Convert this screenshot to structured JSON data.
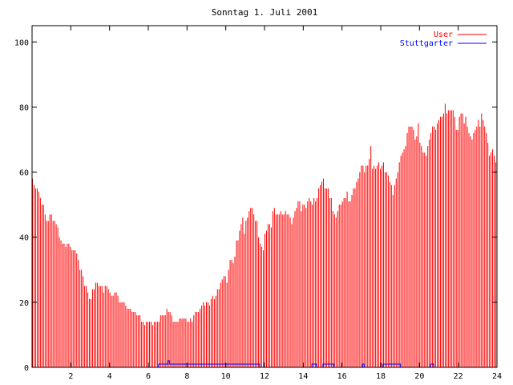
{
  "chart_data": {
    "type": "bar",
    "title": "Sonntag 1. Juli 2001",
    "xlim": [
      0,
      24
    ],
    "ylim": [
      0,
      105
    ],
    "xticks": [
      2,
      4,
      6,
      8,
      10,
      12,
      14,
      16,
      18,
      20,
      22,
      24
    ],
    "yticks": [
      0,
      20,
      40,
      60,
      80,
      100
    ],
    "legend_position": "top-right",
    "series": [
      {
        "name": "User",
        "color": "#ff0000",
        "values": [
          58,
          56,
          55,
          55,
          54,
          52,
          50,
          50,
          47,
          45,
          45,
          47,
          47,
          45,
          45,
          44,
          43,
          40,
          39,
          38,
          38,
          37,
          38,
          38,
          37,
          36,
          36,
          36,
          35,
          33,
          30,
          30,
          28,
          25,
          25,
          23,
          21,
          21,
          24,
          24,
          26,
          26,
          25,
          25,
          25,
          23,
          25,
          25,
          24,
          23,
          22,
          22,
          23,
          23,
          22,
          20,
          20,
          20,
          20,
          19,
          18,
          18,
          18,
          17,
          17,
          17,
          16,
          16,
          16,
          14,
          14,
          13,
          14,
          14,
          14,
          14,
          13,
          14,
          14,
          14,
          14,
          16,
          16,
          16,
          16,
          18,
          17,
          17,
          16,
          14,
          14,
          14,
          14,
          15,
          15,
          15,
          15,
          15,
          14,
          14,
          15,
          14,
          16,
          17,
          17,
          17,
          18,
          19,
          20,
          19,
          20,
          20,
          19,
          21,
          22,
          21,
          22,
          24,
          24,
          26,
          27,
          28,
          28,
          26,
          30,
          33,
          33,
          32,
          34,
          39,
          39,
          42,
          44,
          46,
          41,
          45,
          46,
          48,
          49,
          49,
          47,
          45,
          45,
          40,
          38,
          37,
          36,
          41,
          42,
          44,
          44,
          43,
          48,
          49,
          47,
          47,
          47,
          48,
          47,
          47,
          48,
          47,
          47,
          46,
          44,
          46,
          48,
          49,
          51,
          51,
          48,
          50,
          50,
          49,
          51,
          52,
          51,
          50,
          52,
          51,
          52,
          55,
          56,
          57,
          58,
          55,
          55,
          55,
          52,
          52,
          48,
          47,
          46,
          48,
          50,
          50,
          51,
          52,
          52,
          54,
          51,
          51,
          53,
          55,
          55,
          57,
          58,
          60,
          62,
          62,
          60,
          62,
          62,
          64,
          68,
          61,
          62,
          61,
          62,
          63,
          61,
          62,
          63,
          60,
          60,
          59,
          57,
          56,
          53,
          56,
          58,
          60,
          63,
          65,
          66,
          67,
          68,
          72,
          74,
          74,
          74,
          73,
          70,
          71,
          75,
          69,
          68,
          66,
          66,
          65,
          68,
          70,
          72,
          74,
          74,
          73,
          75,
          76,
          77,
          77,
          78,
          81,
          78,
          79,
          79,
          79,
          79,
          77,
          73,
          73,
          77,
          78,
          78,
          75,
          77,
          74,
          72,
          71,
          70,
          72,
          73,
          74,
          76,
          74,
          78,
          76,
          74,
          72,
          69,
          65,
          66,
          67,
          65,
          63
        ]
      },
      {
        "name": "Stuttgarter",
        "color": "#0000ff",
        "values": [
          0,
          0,
          0,
          0,
          0,
          0,
          0,
          0,
          0,
          0,
          0,
          0,
          0,
          0,
          0,
          0,
          0,
          0,
          0,
          0,
          0,
          0,
          0,
          0,
          0,
          0,
          0,
          0,
          0,
          0,
          0,
          0,
          0,
          0,
          0,
          0,
          0,
          0,
          0,
          0,
          0,
          0,
          0,
          0,
          0,
          0,
          0,
          0,
          0,
          0,
          0,
          0,
          0,
          0,
          0,
          0,
          0,
          0,
          0,
          0,
          0,
          0,
          0,
          0,
          0,
          0,
          0,
          0,
          0,
          0,
          0,
          0,
          0,
          0,
          0,
          0,
          0,
          0,
          0,
          0,
          1,
          1,
          1,
          1,
          1,
          1,
          2,
          1,
          1,
          1,
          1,
          1,
          1,
          1,
          1,
          1,
          1,
          1,
          1,
          1,
          1,
          1,
          1,
          1,
          1,
          1,
          1,
          1,
          1,
          1,
          1,
          1,
          1,
          1,
          1,
          1,
          1,
          1,
          1,
          1,
          1,
          1,
          1,
          1,
          1,
          1,
          1,
          1,
          1,
          1,
          1,
          1,
          1,
          1,
          1,
          1,
          1,
          1,
          1,
          1,
          1,
          1,
          1,
          1,
          0,
          0,
          0,
          0,
          0,
          0,
          0,
          0,
          0,
          0,
          0,
          0,
          0,
          0,
          0,
          0,
          0,
          0,
          0,
          0,
          0,
          0,
          0,
          0,
          0,
          0,
          0,
          0,
          0,
          0,
          0,
          0,
          0,
          1,
          1,
          1,
          0,
          0,
          0,
          0,
          1,
          1,
          1,
          1,
          1,
          1,
          1,
          0,
          0,
          0,
          0,
          0,
          0,
          0,
          0,
          0,
          0,
          0,
          0,
          0,
          0,
          0,
          0,
          0,
          0,
          1,
          0,
          0,
          0,
          0,
          0,
          0,
          0,
          0,
          0,
          0,
          0,
          0,
          1,
          1,
          1,
          1,
          1,
          1,
          1,
          1,
          1,
          1,
          1,
          0,
          0,
          0,
          0,
          0,
          0,
          0,
          0,
          0,
          0,
          0,
          0,
          0,
          0,
          0,
          0,
          0,
          0,
          0,
          1,
          1,
          0,
          0,
          0,
          0,
          0,
          0,
          0,
          0,
          0,
          0,
          0,
          0,
          0,
          0,
          0,
          0,
          0,
          0,
          0,
          0,
          0,
          0,
          0,
          0,
          0,
          0,
          0,
          0,
          0,
          0,
          0
        ]
      }
    ]
  }
}
